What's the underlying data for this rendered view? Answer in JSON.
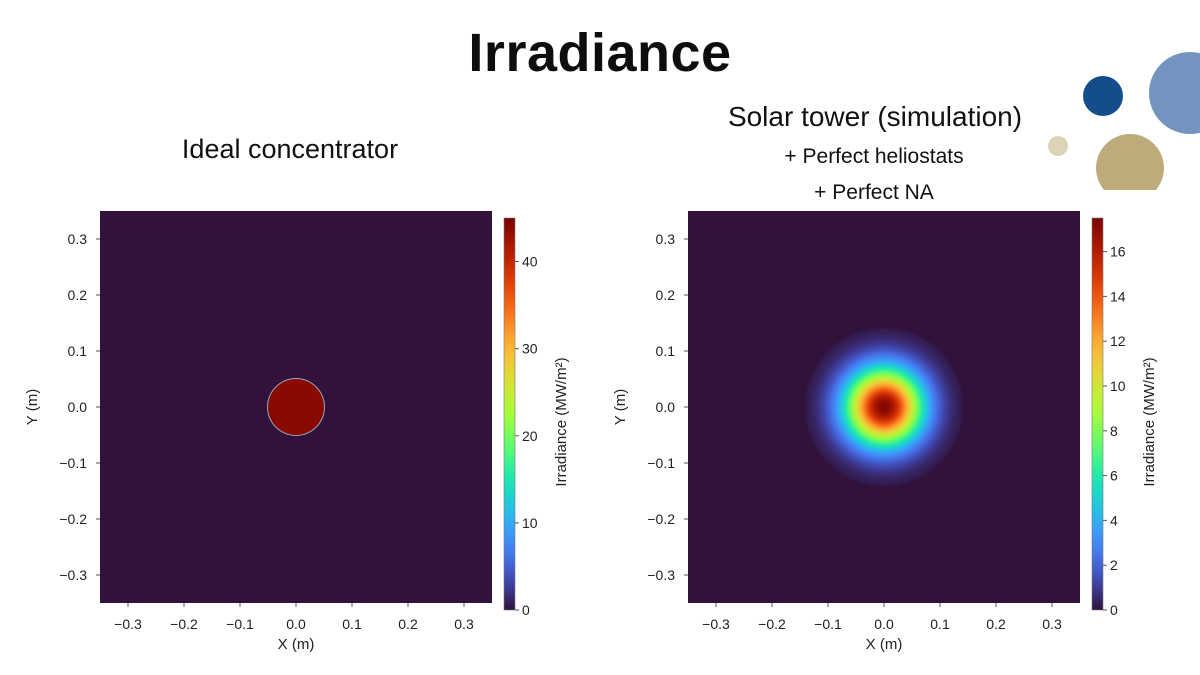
{
  "slide": {
    "title": "Irradiance",
    "left_caption": "Ideal concentrator",
    "right_caption": "Solar tower (simulation)",
    "right_subcaption_1": "+ Perfect heliostats",
    "right_subcaption_2": "+ Perfect NA"
  },
  "decor": {
    "circle_colors": [
      "#134d8b",
      "#7294bf",
      "#ddd3b8",
      "#bdab7b"
    ]
  },
  "chart_data": [
    {
      "type": "heatmap",
      "title": "Ideal concentrator",
      "xlabel": "X (m)",
      "ylabel": "Y (m)",
      "xlim": [
        -0.35,
        0.35
      ],
      "ylim": [
        -0.35,
        0.35
      ],
      "x_ticks": [
        -0.3,
        -0.2,
        -0.1,
        0.0,
        0.1,
        0.2,
        0.3
      ],
      "x_tick_labels": [
        "−0.3",
        "−0.2",
        "−0.1",
        "0.0",
        "0.1",
        "0.2",
        "0.3"
      ],
      "y_ticks": [
        0.3,
        0.2,
        0.1,
        0.0,
        -0.1,
        -0.2,
        -0.3
      ],
      "y_tick_labels": [
        "0.3",
        "0.2",
        "0.1",
        "0.0",
        "−0.1",
        "−0.2",
        "−0.3"
      ],
      "colorbar": {
        "label": "Irradiance (MW/m²)",
        "colormap": "turbo",
        "range": [
          0,
          45
        ],
        "ticks": [
          0,
          10,
          20,
          30,
          40
        ],
        "tick_labels": [
          "0",
          "10",
          "20",
          "30",
          "40"
        ]
      },
      "distribution": {
        "shape": "uniform-disk",
        "center": [
          0.0,
          0.0
        ],
        "radius": 0.05,
        "peak": 44,
        "background": 0
      }
    },
    {
      "type": "heatmap",
      "title": "Solar tower (simulation)",
      "xlabel": "X (m)",
      "ylabel": "Y (m)",
      "xlim": [
        -0.35,
        0.35
      ],
      "ylim": [
        -0.35,
        0.35
      ],
      "x_ticks": [
        -0.3,
        -0.2,
        -0.1,
        0.0,
        0.1,
        0.2,
        0.3
      ],
      "x_tick_labels": [
        "−0.3",
        "−0.2",
        "−0.1",
        "0.0",
        "0.1",
        "0.2",
        "0.3"
      ],
      "y_ticks": [
        0.3,
        0.2,
        0.1,
        0.0,
        -0.1,
        -0.2,
        -0.3
      ],
      "y_tick_labels": [
        "0.3",
        "0.2",
        "0.1",
        "0.0",
        "−0.1",
        "−0.2",
        "−0.3"
      ],
      "colorbar": {
        "label": "Irradiance (MW/m²)",
        "colormap": "turbo",
        "range": [
          0,
          17.5
        ],
        "ticks": [
          0,
          2,
          4,
          6,
          8,
          10,
          12,
          14,
          16
        ],
        "tick_labels": [
          "0",
          "2",
          "4",
          "6",
          "8",
          "10",
          "12",
          "14",
          "16"
        ]
      },
      "distribution": {
        "shape": "gaussian",
        "center": [
          0.0,
          0.0
        ],
        "sigma": 0.047,
        "peak": 17.3,
        "background": 0
      }
    }
  ]
}
